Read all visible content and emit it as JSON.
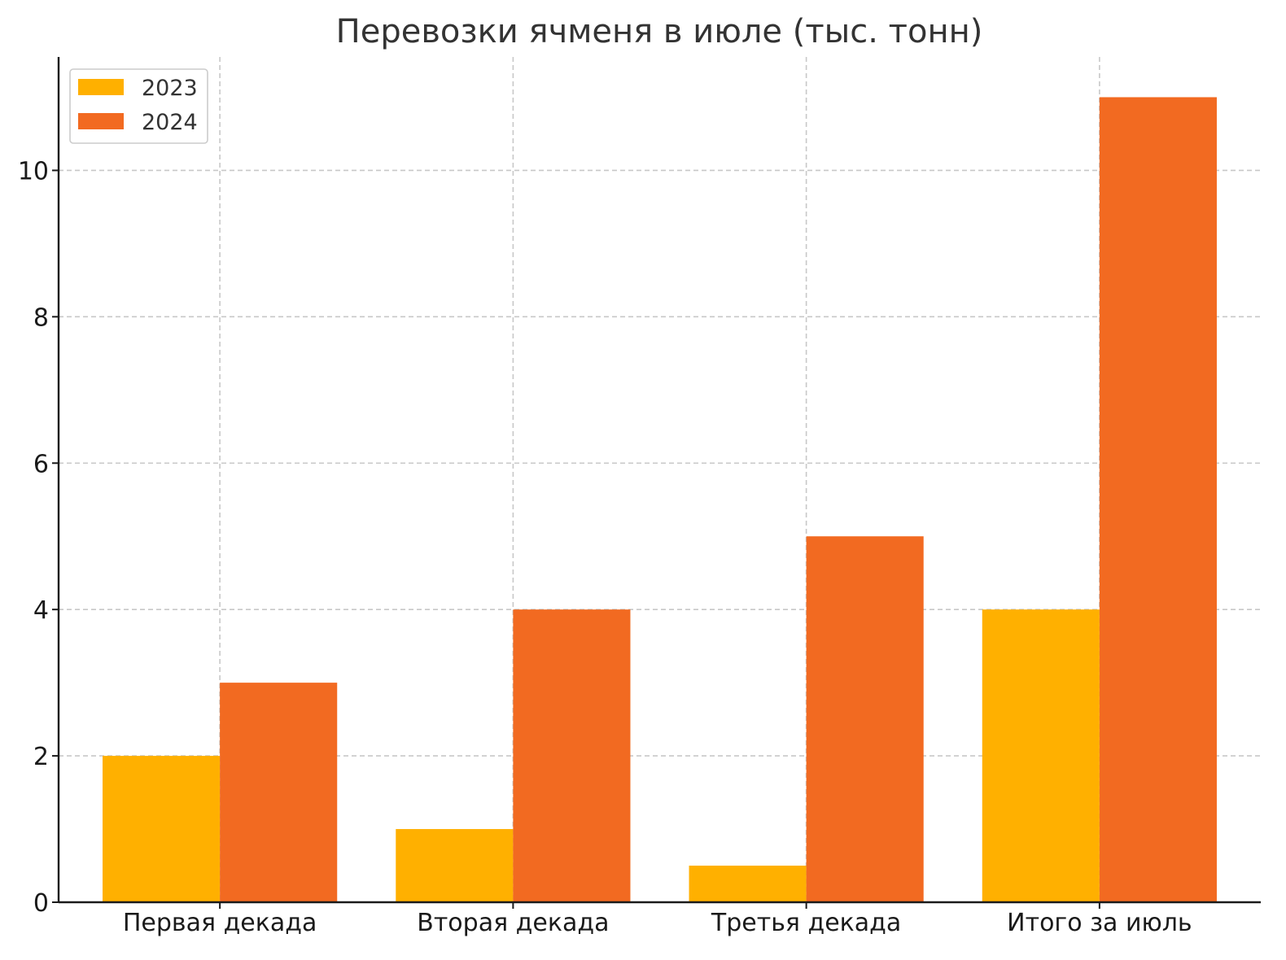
{
  "chart_data": {
    "type": "bar",
    "title": "Перевозки ячменя в июле (тыс. тонн)",
    "xlabel": "",
    "ylabel": "",
    "categories": [
      "Первая декада",
      "Вторая декада",
      "Третья декада",
      "Итого за июль"
    ],
    "series": [
      {
        "name": "2023",
        "values": [
          2,
          1,
          0.5,
          4
        ],
        "color": "#FFB000"
      },
      {
        "name": "2024",
        "values": [
          3,
          4,
          5,
          11
        ],
        "color": "#F26A21"
      }
    ],
    "ylim": [
      0,
      11.55
    ],
    "yticks": [
      0,
      2,
      4,
      6,
      8,
      10
    ],
    "ytick_labels": [
      "0",
      "2",
      "4",
      "6",
      "8",
      "10"
    ],
    "grid": true,
    "legend_position": "top-left"
  }
}
